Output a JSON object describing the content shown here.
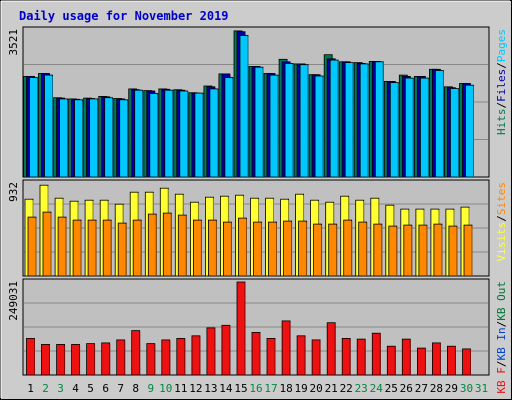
{
  "chart_data": {
    "type": "bar",
    "title": "Daily usage for November 2019",
    "colors": {
      "frame_bg": "#cccccc",
      "plot_bg": "#c0c0c0",
      "title": "#0000cc",
      "hits": "#007755",
      "files": "#0000aa",
      "pages": "#00c8ff",
      "visits": "#ffff33",
      "sites": "#ff8800",
      "kb_in": "#0044cc",
      "kb_out": "#007733",
      "kb_f": "#ee1111",
      "weekday_label": "#000000",
      "weekend_label": "#008844"
    },
    "x": [
      "1",
      "2",
      "3",
      "4",
      "5",
      "6",
      "7",
      "8",
      "9",
      "10",
      "11",
      "12",
      "13",
      "14",
      "15",
      "16",
      "17",
      "18",
      "19",
      "20",
      "21",
      "22",
      "23",
      "24",
      "25",
      "26",
      "27",
      "28",
      "29",
      "30",
      "31"
    ],
    "weekend_days": [
      "2",
      "3",
      "9",
      "10",
      "16",
      "17",
      "23",
      "24",
      "30",
      "31"
    ],
    "panels": [
      {
        "id": "hits-files-pages",
        "ymax_label": "3521",
        "ymax": 3521,
        "legend": [
          {
            "text": "Hits",
            "color": "#007755"
          },
          {
            "text": "/",
            "color": "#000000"
          },
          {
            "text": "Files",
            "color": "#0000aa"
          },
          {
            "text": "/",
            "color": "#000000"
          },
          {
            "text": "Pages",
            "color": "#00c8ff"
          }
        ],
        "series": [
          {
            "key": "hits",
            "values": [
              2410,
              2480,
              1900,
              1870,
              1890,
              1930,
              1880,
              2110,
              2070,
              2110,
              2090,
              2020,
              2180,
              2470,
              3500,
              2650,
              2480,
              2820,
              2710,
              2450,
              2930,
              2760,
              2740,
              2770,
              2290,
              2440,
              2410,
              2580,
              2160,
              2240,
              null
            ]
          },
          {
            "key": "files",
            "values": [
              2410,
              2480,
              1890,
              1860,
              1880,
              1920,
              1870,
              2090,
              2060,
              2100,
              2080,
              2010,
              2160,
              2470,
              3480,
              2650,
              2480,
              2760,
              2710,
              2450,
              2830,
              2760,
              2720,
              2770,
              2290,
              2410,
              2410,
              2580,
              2140,
              2240,
              null
            ]
          },
          {
            "key": "pages",
            "values": [
              2380,
              2440,
              1870,
              1850,
              1870,
              1900,
              1850,
              2080,
              2000,
              2080,
              2060,
              2010,
              2110,
              2380,
              3390,
              2630,
              2440,
              2720,
              2690,
              2420,
              2800,
              2740,
              2710,
              2760,
              2260,
              2370,
              2370,
              2550,
              2120,
              2200,
              null
            ]
          }
        ]
      },
      {
        "id": "visits-sites",
        "ymax_label": "932",
        "ymax": 932,
        "legend": [
          {
            "text": "Visits",
            "color": "#ffff33"
          },
          {
            "text": "/",
            "color": "#000000"
          },
          {
            "text": "Sites",
            "color": "#ff8800"
          }
        ],
        "series": [
          {
            "key": "visits",
            "values": [
              770,
              910,
              780,
              750,
              760,
              760,
              720,
              840,
              840,
              880,
              820,
              740,
              790,
              800,
              810,
              780,
              780,
              770,
              820,
              760,
              740,
              800,
              760,
              780,
              710,
              670,
              670,
              670,
              670,
              690,
              null
            ]
          },
          {
            "key": "sites",
            "values": [
              590,
              640,
              590,
              560,
              560,
              560,
              530,
              560,
              620,
              630,
              610,
              560,
              560,
              540,
              580,
              540,
              540,
              550,
              550,
              520,
              520,
              560,
              540,
              520,
              500,
              510,
              510,
              520,
              500,
              510,
              null
            ]
          }
        ]
      },
      {
        "id": "kbytes",
        "ymax_label": "249031",
        "ymax": 249031,
        "legend": [
          {
            "text": "KB F",
            "color": "#ee1111"
          },
          {
            "text": "/",
            "color": "#000000"
          },
          {
            "text": "KB In",
            "color": "#0044cc"
          },
          {
            "text": "/",
            "color": "#000000"
          },
          {
            "text": "KB Out",
            "color": "#007733"
          }
        ],
        "series": [
          {
            "key": "kb_f",
            "values": [
              98000,
              82000,
              82000,
              82000,
              84000,
              86000,
              94000,
              119000,
              84000,
              94000,
              98000,
              105000,
              126000,
              133000,
              249031,
              114000,
              98000,
              145000,
              105000,
              94000,
              140000,
              98000,
              96000,
              112000,
              77000,
              96000,
              72000,
              86000,
              77000,
              70000,
              null
            ]
          }
        ]
      }
    ]
  }
}
